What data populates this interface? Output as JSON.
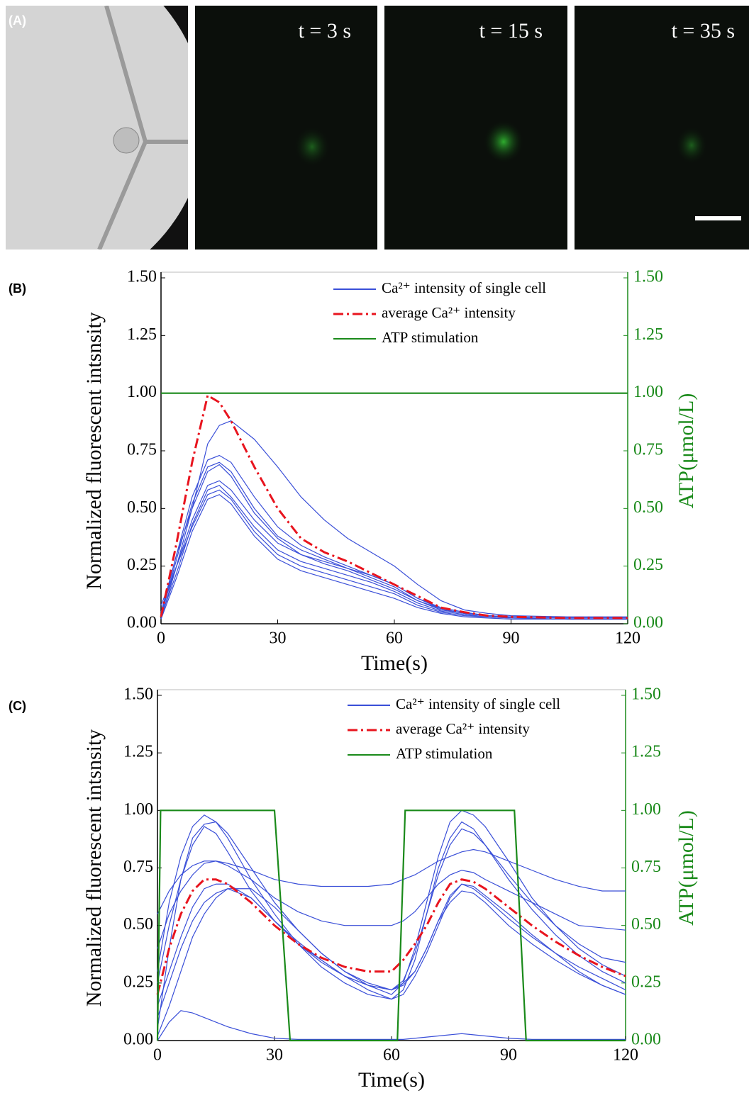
{
  "panel_a": {
    "label": "(A)",
    "frames": [
      "t = 3 s",
      "t = 15 s",
      "t = 35 s"
    ]
  },
  "chart_data": [
    {
      "type": "line",
      "panel": "(B)",
      "xlabel": "Time(s)",
      "ylabel": "Normalized fluorescent intsnsity",
      "y2label": "ATP(μmol/L)",
      "x": [
        0,
        4,
        8,
        12,
        15,
        18,
        24,
        30,
        36,
        42,
        48,
        54,
        60,
        66,
        72,
        78,
        84,
        90,
        105,
        120
      ],
      "xlim": [
        0,
        120
      ],
      "xticks": [
        0,
        30,
        60,
        90,
        120
      ],
      "ylim": [
        0,
        1.5
      ],
      "yticks": [
        {
          "value": 0,
          "label": "0.00"
        },
        {
          "value": 0.25,
          "label": "0.25"
        },
        {
          "value": 0.5,
          "label": "0.50"
        },
        {
          "value": 0.75,
          "label": "0.75"
        },
        {
          "value": 1,
          "label": "1.00"
        },
        {
          "value": 1.25,
          "label": "1.25"
        },
        {
          "value": 1.5,
          "label": "1.50"
        }
      ],
      "y2lim": [
        0,
        1.5
      ],
      "y2ticks": [
        {
          "value": 0,
          "label": "0.00"
        },
        {
          "value": 0.25,
          "label": "0.25"
        },
        {
          "value": 0.5,
          "label": "0.50"
        },
        {
          "value": 0.75,
          "label": "0.75"
        },
        {
          "value": 1,
          "label": "1.00"
        },
        {
          "value": 1.25,
          "label": "1.25"
        },
        {
          "value": 1.5,
          "label": "1.50"
        }
      ],
      "series": [
        {
          "name": "Ca²⁺ intensity of single cell",
          "color": "#3a4fd8",
          "values": [
            [
              0.05,
              0.25,
              0.5,
              0.78,
              0.86,
              0.88,
              0.8,
              0.68,
              0.55,
              0.45,
              0.37,
              0.31,
              0.25,
              0.17,
              0.1,
              0.06,
              0.045,
              0.035,
              0.03,
              0.03
            ],
            [
              0.04,
              0.3,
              0.55,
              0.71,
              0.73,
              0.7,
              0.55,
              0.42,
              0.34,
              0.29,
              0.25,
              0.21,
              0.17,
              0.11,
              0.07,
              0.05,
              0.035,
              0.03,
              0.025,
              0.025
            ],
            [
              0.03,
              0.28,
              0.52,
              0.68,
              0.7,
              0.66,
              0.5,
              0.38,
              0.32,
              0.28,
              0.24,
              0.2,
              0.16,
              0.1,
              0.065,
              0.045,
              0.035,
              0.03,
              0.025,
              0.025
            ],
            [
              0.05,
              0.3,
              0.5,
              0.66,
              0.69,
              0.64,
              0.48,
              0.37,
              0.3,
              0.26,
              0.23,
              0.19,
              0.15,
              0.1,
              0.06,
              0.045,
              0.035,
              0.03,
              0.025,
              0.025
            ],
            [
              0.02,
              0.25,
              0.45,
              0.6,
              0.62,
              0.58,
              0.45,
              0.35,
              0.3,
              0.27,
              0.24,
              0.21,
              0.17,
              0.11,
              0.065,
              0.045,
              0.035,
              0.03,
              0.025,
              0.025
            ],
            [
              0.03,
              0.22,
              0.43,
              0.58,
              0.6,
              0.55,
              0.42,
              0.32,
              0.27,
              0.24,
              0.21,
              0.18,
              0.14,
              0.09,
              0.055,
              0.04,
              0.03,
              0.025,
              0.02,
              0.02
            ],
            [
              0.08,
              0.25,
              0.42,
              0.56,
              0.58,
              0.54,
              0.4,
              0.3,
              0.25,
              0.22,
              0.19,
              0.16,
              0.13,
              0.08,
              0.05,
              0.035,
              0.03,
              0.025,
              0.02,
              0.02
            ],
            [
              0.02,
              0.2,
              0.4,
              0.54,
              0.56,
              0.52,
              0.38,
              0.28,
              0.23,
              0.2,
              0.17,
              0.14,
              0.11,
              0.07,
              0.045,
              0.03,
              0.025,
              0.02,
              0.02,
              0.02
            ]
          ]
        },
        {
          "name": "average Ca²⁺ intensity",
          "color": "#e8141e",
          "dash": true,
          "values": [
            0.03,
            0.35,
            0.7,
            0.99,
            0.96,
            0.88,
            0.68,
            0.5,
            0.37,
            0.31,
            0.27,
            0.22,
            0.17,
            0.12,
            0.07,
            0.05,
            0.035,
            0.03,
            0.025,
            0.025
          ]
        },
        {
          "name": "ATP stimulation",
          "color": "#1a8a1a",
          "axis": "y2",
          "x": [
            0,
            120
          ],
          "values": [
            1,
            1
          ]
        }
      ]
    },
    {
      "type": "line",
      "panel": "(C)",
      "xlabel": "Time(s)",
      "ylabel": "Normalized fluorescent intsnsity",
      "y2label": "ATP(μmol/L)",
      "x": [
        0,
        3,
        6,
        9,
        12,
        15,
        18,
        24,
        30,
        36,
        42,
        48,
        54,
        60,
        63,
        66,
        69,
        72,
        75,
        78,
        81,
        84,
        90,
        96,
        102,
        108,
        114,
        120
      ],
      "xlim": [
        0,
        120
      ],
      "xticks": [
        0,
        30,
        60,
        90,
        120
      ],
      "ylim": [
        0,
        1.5
      ],
      "yticks": [
        {
          "value": 0,
          "label": "0.00"
        },
        {
          "value": 0.25,
          "label": "0.25"
        },
        {
          "value": 0.5,
          "label": "0.50"
        },
        {
          "value": 0.75,
          "label": "0.75"
        },
        {
          "value": 1,
          "label": "1.00"
        },
        {
          "value": 1.25,
          "label": "1.25"
        },
        {
          "value": 1.5,
          "label": "1.50"
        }
      ],
      "y2lim": [
        0,
        1.5
      ],
      "y2ticks": [
        {
          "value": 0,
          "label": "0.00"
        },
        {
          "value": 0.25,
          "label": "0.25"
        },
        {
          "value": 0.5,
          "label": "0.50"
        },
        {
          "value": 0.75,
          "label": "0.75"
        },
        {
          "value": 1,
          "label": "1.00"
        },
        {
          "value": 1.25,
          "label": "1.25"
        },
        {
          "value": 1.5,
          "label": "1.50"
        }
      ],
      "series": [
        {
          "name": "Ca²⁺ intensity of single cell",
          "color": "#3a4fd8",
          "values": [
            [
              0.3,
              0.6,
              0.8,
              0.93,
              0.98,
              0.95,
              0.88,
              0.7,
              0.55,
              0.42,
              0.32,
              0.25,
              0.2,
              0.18,
              0.22,
              0.35,
              0.55,
              0.75,
              0.88,
              0.95,
              0.92,
              0.85,
              0.7,
              0.57,
              0.46,
              0.37,
              0.3,
              0.25
            ],
            [
              0.05,
              0.4,
              0.7,
              0.88,
              0.94,
              0.95,
              0.9,
              0.75,
              0.6,
              0.48,
              0.38,
              0.3,
              0.24,
              0.2,
              0.25,
              0.4,
              0.6,
              0.8,
              0.95,
              1.0,
              0.98,
              0.93,
              0.78,
              0.62,
              0.5,
              0.4,
              0.33,
              0.28
            ],
            [
              0.55,
              0.65,
              0.72,
              0.76,
              0.78,
              0.78,
              0.77,
              0.74,
              0.7,
              0.68,
              0.67,
              0.67,
              0.67,
              0.68,
              0.7,
              0.72,
              0.75,
              0.78,
              0.8,
              0.82,
              0.83,
              0.82,
              0.78,
              0.74,
              0.7,
              0.67,
              0.65,
              0.65
            ],
            [
              0.4,
              0.55,
              0.65,
              0.72,
              0.77,
              0.78,
              0.76,
              0.7,
              0.62,
              0.56,
              0.52,
              0.5,
              0.5,
              0.5,
              0.52,
              0.56,
              0.62,
              0.68,
              0.72,
              0.74,
              0.73,
              0.7,
              0.65,
              0.6,
              0.55,
              0.5,
              0.49,
              0.48
            ],
            [
              0.15,
              0.3,
              0.45,
              0.58,
              0.66,
              0.68,
              0.68,
              0.62,
              0.52,
              0.42,
              0.35,
              0.28,
              0.24,
              0.22,
              0.25,
              0.3,
              0.4,
              0.52,
              0.63,
              0.68,
              0.66,
              0.62,
              0.53,
              0.45,
              0.38,
              0.32,
              0.27,
              0.22
            ],
            [
              0.1,
              0.25,
              0.4,
              0.52,
              0.6,
              0.64,
              0.66,
              0.62,
              0.52,
              0.43,
              0.35,
              0.28,
              0.22,
              0.18,
              0.2,
              0.28,
              0.38,
              0.5,
              0.62,
              0.68,
              0.67,
              0.63,
              0.55,
              0.46,
              0.38,
              0.3,
              0.24,
              0.2
            ],
            [
              0.02,
              0.15,
              0.3,
              0.45,
              0.55,
              0.62,
              0.66,
              0.66,
              0.58,
              0.48,
              0.38,
              0.3,
              0.25,
              0.22,
              0.24,
              0.3,
              0.4,
              0.52,
              0.6,
              0.65,
              0.64,
              0.6,
              0.5,
              0.42,
              0.35,
              0.29,
              0.24,
              0.2
            ],
            [
              0,
              0.08,
              0.13,
              0.12,
              0.1,
              0.08,
              0.06,
              0.03,
              0.01,
              0.005,
              0.005,
              0.005,
              0.005,
              0.005,
              0.005,
              0.01,
              0.015,
              0.02,
              0.025,
              0.03,
              0.025,
              0.02,
              0.01,
              0.005,
              0.005,
              0.005,
              0.005,
              0.005
            ],
            [
              0.25,
              0.5,
              0.7,
              0.85,
              0.93,
              0.9,
              0.82,
              0.65,
              0.52,
              0.42,
              0.34,
              0.28,
              0.24,
              0.22,
              0.26,
              0.38,
              0.55,
              0.72,
              0.85,
              0.92,
              0.9,
              0.85,
              0.72,
              0.6,
              0.5,
              0.42,
              0.36,
              0.34
            ]
          ]
        },
        {
          "name": "average Ca²⁺ intensity",
          "color": "#e8141e",
          "dash": true,
          "values": [
            0.2,
            0.4,
            0.55,
            0.65,
            0.7,
            0.7,
            0.68,
            0.6,
            0.5,
            0.42,
            0.36,
            0.32,
            0.3,
            0.3,
            0.35,
            0.42,
            0.5,
            0.6,
            0.68,
            0.7,
            0.69,
            0.66,
            0.58,
            0.5,
            0.43,
            0.37,
            0.32,
            0.28
          ]
        },
        {
          "name": "ATP stimulation",
          "color": "#1a8a1a",
          "axis": "y2",
          "x": [
            0,
            0.8,
            30,
            32,
            34,
            61.5,
            62.5,
            63.5,
            91.5,
            93,
            94.5,
            120
          ],
          "values": [
            0,
            1,
            1,
            0.5,
            0,
            0,
            0.5,
            1,
            1,
            0.5,
            0,
            0
          ]
        }
      ]
    }
  ]
}
